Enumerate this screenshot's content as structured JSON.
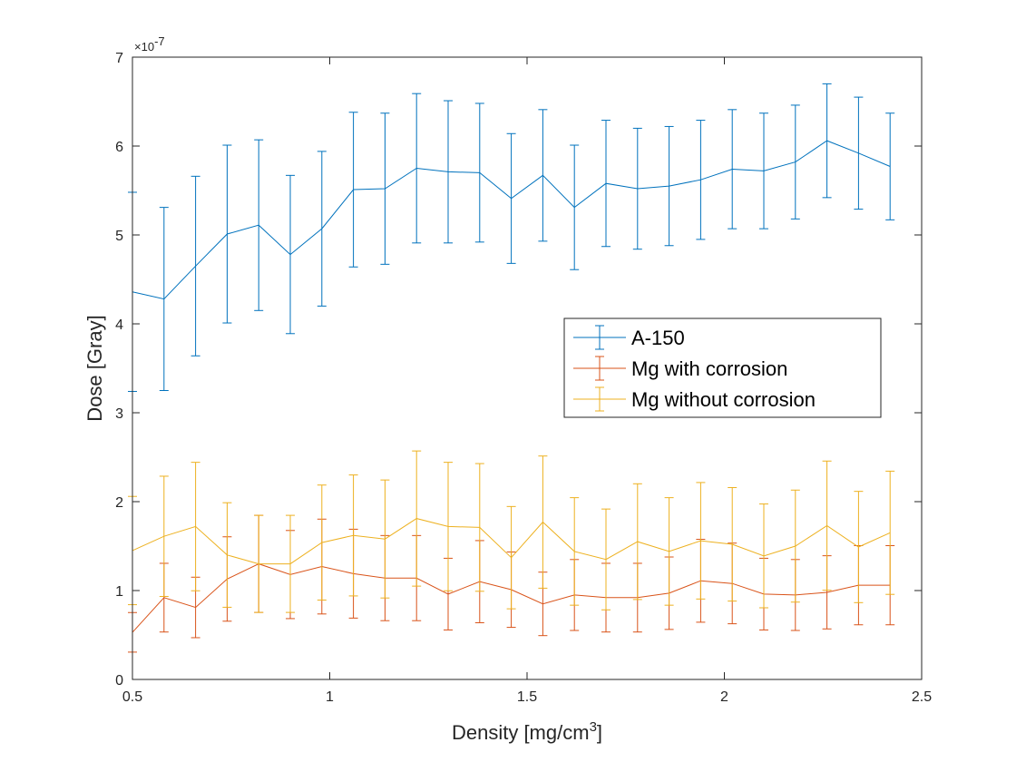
{
  "chart_data": {
    "type": "line",
    "title": "",
    "xlabel": "Density [mg/cm",
    "xlabel_superscript": "3",
    "xlabel_close": "]",
    "ylabel": "Dose [Gray]",
    "y_exponent_base": "×10",
    "y_exponent_power": "-7",
    "xlim": [
      0.5,
      2.5
    ],
    "ylim": [
      0,
      7
    ],
    "x_ticks": [
      0.5,
      1,
      1.5,
      2,
      2.5
    ],
    "x_tick_labels": [
      "0.5",
      "1",
      "1.5",
      "2",
      "2.5"
    ],
    "y_ticks": [
      0,
      1,
      2,
      3,
      4,
      5,
      6,
      7
    ],
    "y_tick_labels": [
      "0",
      "1",
      "2",
      "3",
      "4",
      "5",
      "6",
      "7"
    ],
    "grid": false,
    "legend_position": "center-right",
    "x": [
      0.5,
      0.58,
      0.66,
      0.74,
      0.82,
      0.9,
      0.98,
      1.06,
      1.14,
      1.22,
      1.3,
      1.38,
      1.46,
      1.54,
      1.62,
      1.7,
      1.78,
      1.86,
      1.94,
      2.02,
      2.1,
      2.18,
      2.26,
      2.34,
      2.42
    ],
    "series": [
      {
        "name": "A-150",
        "color": "#0072BD",
        "values": [
          4.36,
          4.28,
          4.65,
          5.01,
          5.11,
          4.78,
          5.07,
          5.51,
          5.52,
          5.75,
          5.71,
          5.7,
          5.41,
          5.67,
          5.31,
          5.58,
          5.52,
          5.55,
          5.62,
          5.74,
          5.72,
          5.82,
          6.06,
          5.92,
          5.77
        ],
        "errors": [
          1.12,
          1.03,
          1.01,
          1.0,
          0.96,
          0.89,
          0.87,
          0.87,
          0.85,
          0.84,
          0.8,
          0.78,
          0.73,
          0.74,
          0.7,
          0.71,
          0.68,
          0.67,
          0.67,
          0.67,
          0.65,
          0.64,
          0.64,
          0.63,
          0.6
        ]
      },
      {
        "name": "Mg with corrosion",
        "color": "#D95319",
        "values": [
          0.53,
          0.92,
          0.81,
          1.13,
          1.3,
          1.18,
          1.27,
          1.19,
          1.14,
          1.14,
          0.96,
          1.1,
          1.01,
          0.85,
          0.95,
          0.92,
          0.92,
          0.97,
          1.11,
          1.08,
          0.96,
          0.95,
          0.98,
          1.06,
          1.06
        ]
      },
      {
        "name": "Mg without corrosion",
        "color": "#EDB120",
        "values": [
          1.45,
          1.61,
          1.72,
          1.4,
          1.3,
          1.3,
          1.54,
          1.62,
          1.58,
          1.81,
          1.72,
          1.71,
          1.37,
          1.77,
          1.44,
          1.35,
          1.55,
          1.44,
          1.56,
          1.52,
          1.39,
          1.5,
          1.73,
          1.49,
          1.65
        ]
      }
    ]
  }
}
